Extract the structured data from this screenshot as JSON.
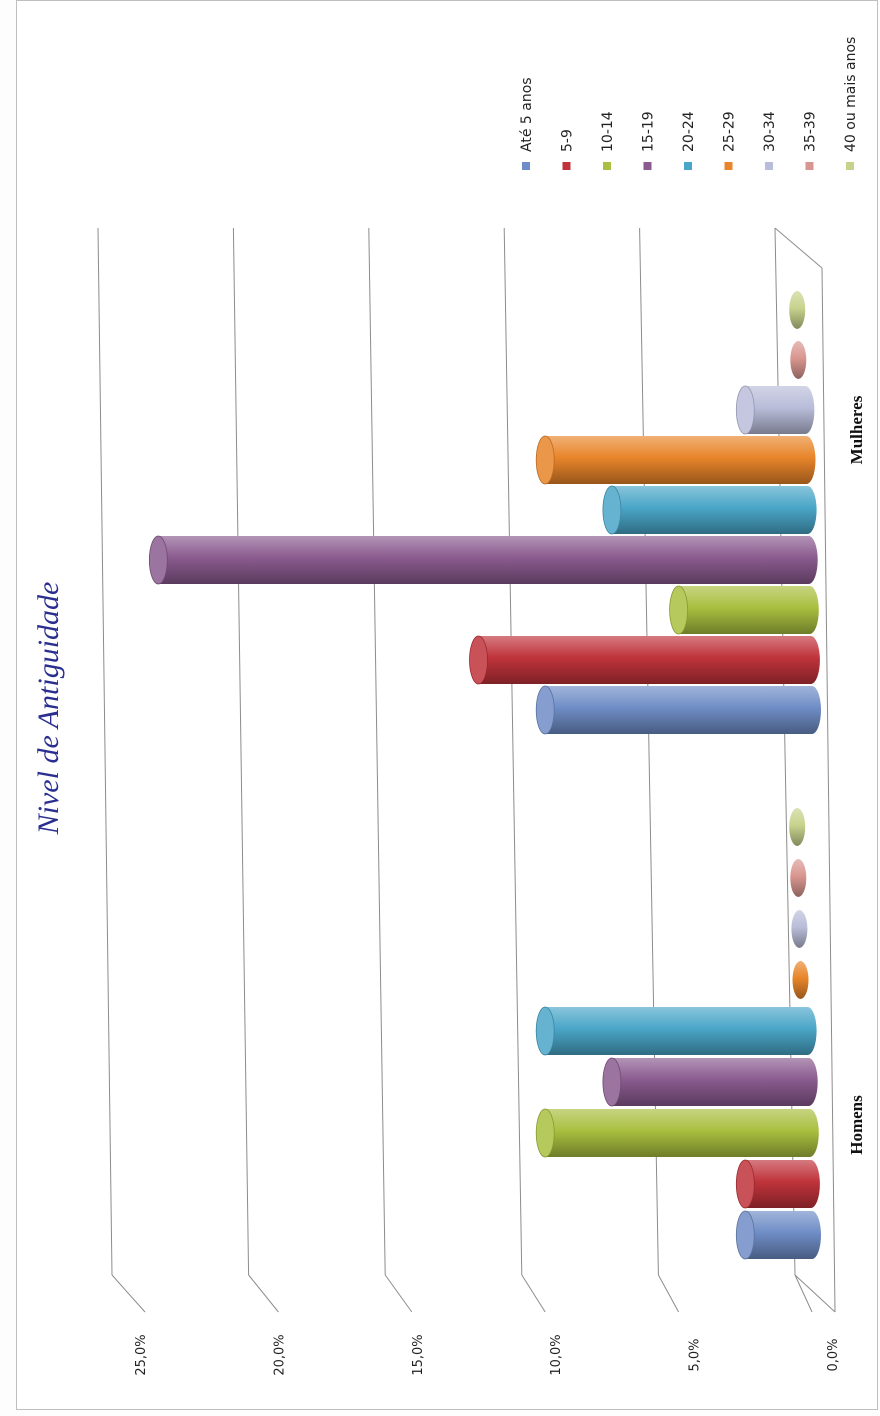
{
  "chart_data": {
    "type": "bar",
    "title": "Nivel de Antiguidade",
    "categories": [
      "Homens",
      "Mulheres"
    ],
    "series": [
      {
        "name": "Até 5 anos",
        "color": "#6f8dc6",
        "values": [
          2.5,
          10.0
        ]
      },
      {
        "name": "5-9",
        "color": "#c0333b",
        "values": [
          2.5,
          12.5
        ]
      },
      {
        "name": "10-14",
        "color": "#a9bf3f",
        "values": [
          10.0,
          5.0
        ]
      },
      {
        "name": "15-19",
        "color": "#8a5b8f",
        "values": [
          7.5,
          24.5
        ]
      },
      {
        "name": "20-24",
        "color": "#4aa6c8",
        "values": [
          10.0,
          7.5
        ]
      },
      {
        "name": "25-29",
        "color": "#e8852a",
        "values": [
          0.0,
          10.0
        ]
      },
      {
        "name": "30-34",
        "color": "#b9bdd9",
        "values": [
          0.0,
          2.5
        ]
      },
      {
        "name": "35-39",
        "color": "#d99690",
        "values": [
          0.0,
          0.0
        ]
      },
      {
        "name": "40 ou mais anos",
        "color": "#c7d38d",
        "values": [
          0.0,
          0.0
        ]
      }
    ],
    "ylim": [
      0,
      25
    ],
    "yticks": [
      "0,0%",
      "5,0%",
      "10,0%",
      "15,0%",
      "20,0%",
      "25,0%"
    ],
    "grid": true,
    "legend_position": "right",
    "orientation": "rotated 90° counter-clockwise"
  }
}
